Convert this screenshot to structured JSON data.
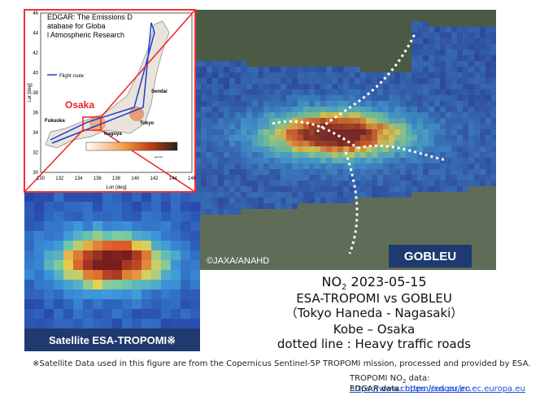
{
  "inset": {
    "title": "EDGAR: The Emissions Database for Global Atmospheric Research",
    "legend": "Flight route",
    "city_osaka": "Osaka",
    "city_fukuoka": "Fukuoka",
    "city_nagoya": "Nagoya",
    "city_tokyo": "Tokyo",
    "city_sendai": "Sendai",
    "y_label": "Lat [deg]",
    "x_label": "Lon [deg]",
    "yticks": [
      "30",
      "32",
      "34",
      "36",
      "38",
      "40",
      "42",
      "44",
      "46"
    ],
    "xticks": [
      "130",
      "132",
      "134",
      "136",
      "138",
      "140",
      "142",
      "144",
      "146"
    ],
    "colorbar_unit": "kg/m²/s"
  },
  "gobleu_panel": {
    "label": "GOBLEU",
    "credit": "©JAXA/ANAHD"
  },
  "tropomi_panel": {
    "label": "Satellite ESA-TROPOMI※"
  },
  "caption": {
    "gas": "NO",
    "gas_sub": "2",
    "date": "2023-05-15",
    "line2": "ESA-TROPOMI vs GOBLEU",
    "line3": "（Tokyo Haneda - Nagasaki）",
    "line4": "Kobe – Osaka",
    "line5": "dotted line : Heavy traffic roads"
  },
  "footnote": "※Satellite Data used in this figure are from the Copernicus Sentinel-5P TROPOMI mission, processed and provided by ESA.",
  "links": [
    {
      "label_main": "TROPOMI NO",
      "label_sub": "2",
      "label_rest": "data:",
      "url": "https://www.copernicus.eu/en"
    },
    {
      "label": "EDGAR data:",
      "url": "https://edgar.jrc.ec.europa.eu"
    }
  ]
}
